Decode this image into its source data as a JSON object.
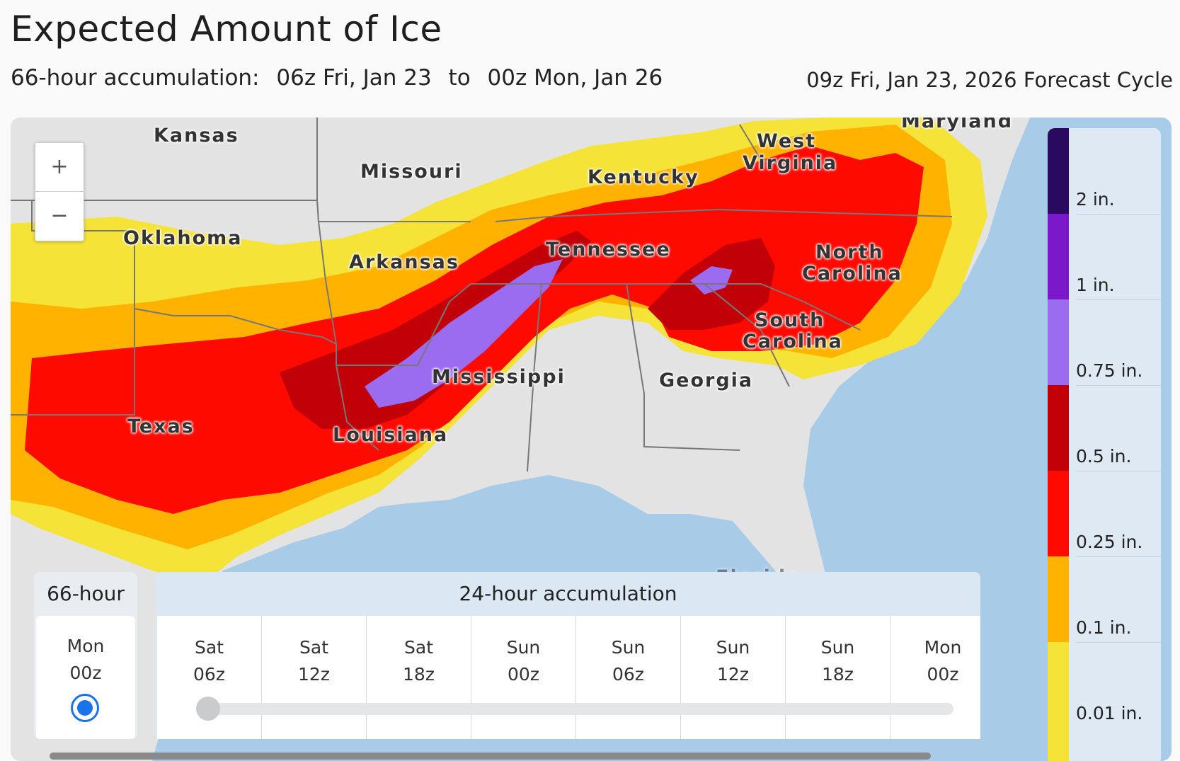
{
  "header": {
    "title": "Expected Amount of Ice",
    "range_prefix": "66-hour accumulation:",
    "range_start": "06z Fri, Jan 23",
    "range_to": "to",
    "range_end": "00z Mon, Jan 26",
    "forecast_cycle": "09z Fri, Jan 23, 2026 Forecast Cycle"
  },
  "map": {
    "zoom_in": "+",
    "zoom_out": "−",
    "states": [
      "Kansas",
      "Missouri",
      "Kentucky",
      "West",
      "Virginia",
      "Maryland",
      "Oklahoma",
      "Arkansas",
      "Tennessee",
      "North",
      "Carolina",
      "South",
      "Carolina",
      "Mississippi",
      "Georgia",
      "Texas",
      "Louisiana",
      "Florida"
    ]
  },
  "legend": {
    "items": [
      {
        "label": "2 in.",
        "color": "#2a0a5e"
      },
      {
        "label": "1 in.",
        "color": "#7b18c9"
      },
      {
        "label": "0.75 in.",
        "color": "#9b6bf0"
      },
      {
        "label": "0.5 in.",
        "color": "#c10007"
      },
      {
        "label": "0.25 in.",
        "color": "#ff0a00"
      },
      {
        "label": "0.1 in.",
        "color": "#ffb300"
      },
      {
        "label": "0.01 in.",
        "color": "#f5e337"
      }
    ]
  },
  "timeline": {
    "total_header": "66-hour",
    "total_day": "Mon",
    "total_time": "00z",
    "accum_header": "24-hour accumulation",
    "slots": [
      {
        "day": "Sat",
        "time": "06z"
      },
      {
        "day": "Sat",
        "time": "12z"
      },
      {
        "day": "Sat",
        "time": "18z"
      },
      {
        "day": "Sun",
        "time": "00z"
      },
      {
        "day": "Sun",
        "time": "06z"
      },
      {
        "day": "Sun",
        "time": "12z"
      },
      {
        "day": "Sun",
        "time": "18z"
      },
      {
        "day": "Mon",
        "time": "00z"
      }
    ]
  }
}
